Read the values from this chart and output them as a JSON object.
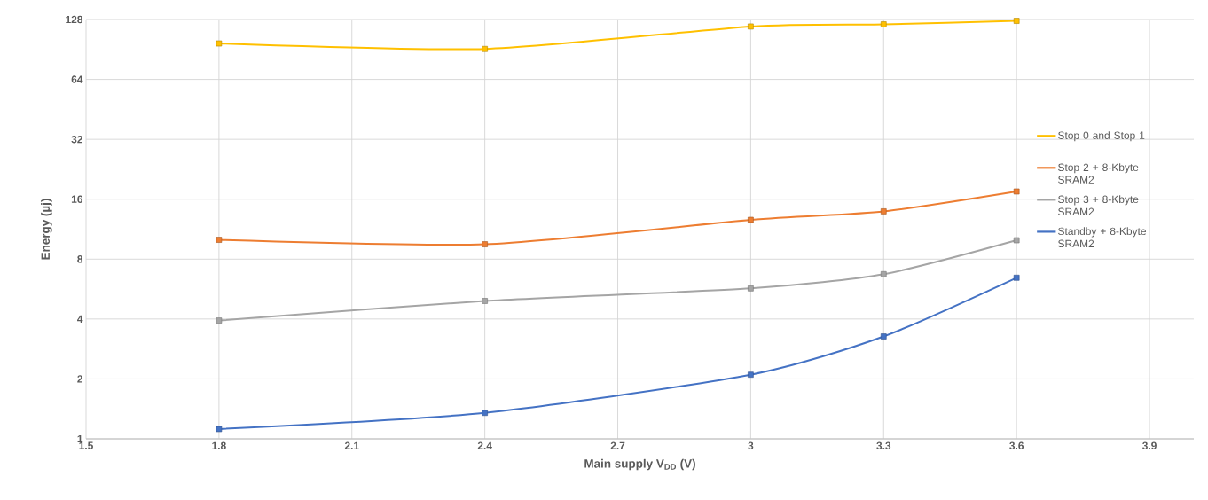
{
  "chart_data": {
    "type": "line",
    "xlabel": "Main supply V$_{DD}$ (V)",
    "ylabel": "Energy (µj)",
    "x": [
      1.8,
      2.4,
      3,
      3.3,
      3.6
    ],
    "series": [
      {
        "name": "Stop 0 and Stop 1",
        "color": "#ffc000",
        "values": [
          97,
          91,
          118,
          121,
          126
        ]
      },
      {
        "name": "Stop 2 + 8-Kbyte SRAM2",
        "color": "#ed7d31",
        "values": [
          10.0,
          9.5,
          12.6,
          13.9,
          17.5
        ]
      },
      {
        "name": "Stop 3 + 8-Kbyte SRAM2",
        "color": "#a5a5a5",
        "values": [
          3.93,
          4.93,
          5.7,
          6.72,
          9.95
        ]
      },
      {
        "name": "Standby + 8-Kbyte SRAM2",
        "color": "#4472c4",
        "values": [
          1.12,
          1.35,
          2.1,
          3.27,
          6.45
        ]
      }
    ],
    "xlim": [
      1.5,
      4.0
    ],
    "xticks": [
      1.5,
      1.8,
      2.1,
      2.4,
      2.7,
      3,
      3.3,
      3.6,
      3.9
    ],
    "ylim": [
      1,
      128
    ],
    "yticks": [
      1,
      2,
      4,
      8,
      16,
      32,
      64,
      128
    ],
    "log": "y",
    "grid": true,
    "legend": "right",
    "marker": "square",
    "line_style": "solid"
  }
}
